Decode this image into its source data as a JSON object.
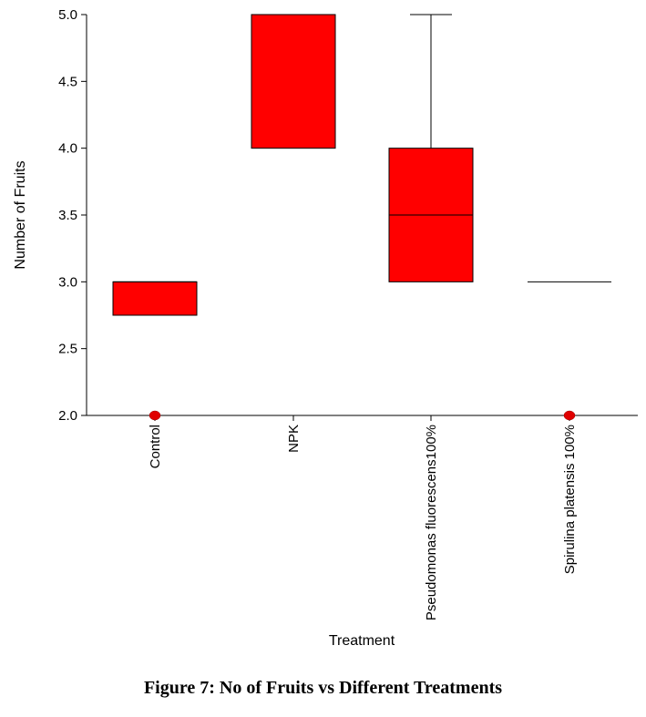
{
  "caption": "Figure 7: No of Fruits vs Different Treatments",
  "chart_data": {
    "type": "box",
    "title": "",
    "xlabel": "Treatment",
    "ylabel": "Number of Fruits",
    "ylim": [
      2.0,
      5.0
    ],
    "yticks": [
      "2.0",
      "2.5",
      "3.0",
      "3.5",
      "4.0",
      "4.5",
      "5.0"
    ],
    "box_color": "#ff0000",
    "outlier_color": "#e00000",
    "categories": [
      "Control",
      "NPK",
      "Pseudomonas fluorescens100%",
      "Spirulina platensis 100%"
    ],
    "boxes": [
      {
        "category": "Control",
        "q1": 2.75,
        "median": 3.0,
        "q3": 3.0,
        "whisker_low": null,
        "whisker_high": null,
        "outliers": [
          2.0
        ]
      },
      {
        "category": "NPK",
        "q1": 4.0,
        "median": 5.0,
        "q3": 5.0,
        "whisker_low": null,
        "whisker_high": null,
        "outliers": []
      },
      {
        "category": "Pseudomonas fluorescens100%",
        "q1": 3.0,
        "median": 3.5,
        "q3": 4.0,
        "whisker_low": null,
        "whisker_high": 5.0,
        "outliers": []
      },
      {
        "category": "Spirulina platensis 100%",
        "q1": 3.0,
        "median": 3.0,
        "q3": 3.0,
        "whisker_low": null,
        "whisker_high": null,
        "outliers": [
          2.0
        ]
      }
    ]
  }
}
